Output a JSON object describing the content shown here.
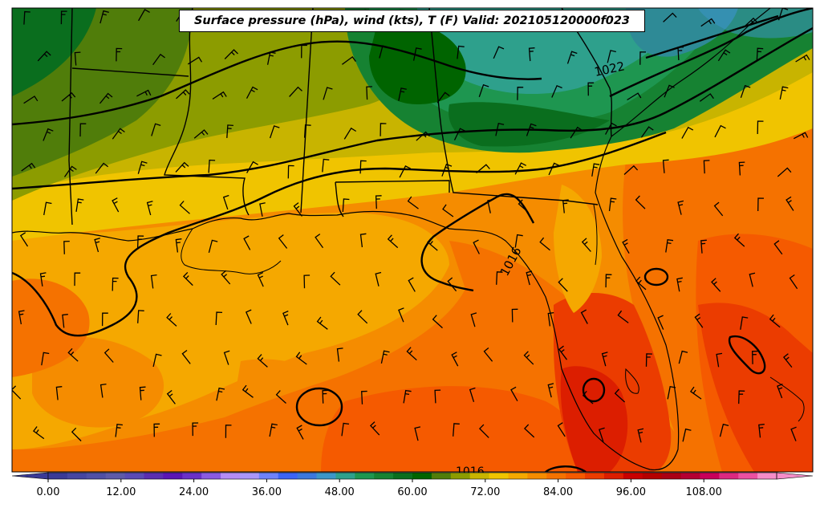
{
  "title": "Surface pressure (hPa), wind (kts), T (F) Valid: 202105120000f023",
  "map": {
    "region": "US Gulf Coast and Florida",
    "fields": [
      "surface pressure contours",
      "wind barbs",
      "temperature fill"
    ],
    "isobar_labels": [
      {
        "text": "1022"
      },
      {
        "text": "1016"
      },
      {
        "text": "1016"
      }
    ]
  },
  "colorbar": {
    "min": 0,
    "max": 120,
    "step": 4,
    "tick_labels": [
      "0.00",
      "12.00",
      "24.00",
      "36.00",
      "48.00",
      "60.00",
      "72.00",
      "84.00",
      "96.00",
      "108.00"
    ],
    "colors": [
      "#3a3a96",
      "#4646a0",
      "#5050a5",
      "#5e5aa8",
      "#5a4ab4",
      "#5a2eb0",
      "#5a16b4",
      "#6a30c8",
      "#8a5ae0",
      "#b48cf5",
      "#aa96fa",
      "#6e82fa",
      "#3c64f5",
      "#3c78dc",
      "#3c96c8",
      "#2ea08c",
      "#1e9650",
      "#168232",
      "#0a6e1e",
      "#006400",
      "#507d0a",
      "#8c9c00",
      "#c8b400",
      "#f0c400",
      "#f5a800",
      "#f58c00",
      "#f57200",
      "#f55a00",
      "#eb3c00",
      "#dc1e00",
      "#c80000",
      "#b40000",
      "#aa0014",
      "#b40032",
      "#c8005a",
      "#dc2880",
      "#eb50a0",
      "#f58cc8"
    ]
  }
}
